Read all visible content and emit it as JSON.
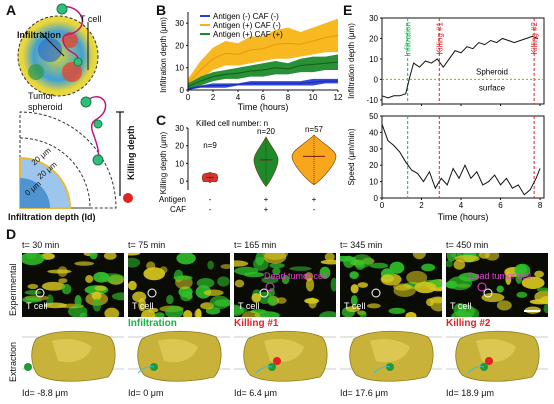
{
  "panels": {
    "a": "A",
    "b": "B",
    "c": "C",
    "d": "D",
    "e": "E"
  },
  "panel_a": {
    "t_cell": "T cell",
    "infiltration": "Infiltration",
    "tumor_spheroid_l1": "Tumor",
    "tumor_spheroid_l2": "spheroid",
    "killing_depth": "Killing depth",
    "r20a": "20 μm",
    "r20b": "20 μm",
    "r0": "0 μm",
    "infiltration_depth": "Infiltration depth (Id)"
  },
  "chart_b": {
    "type": "area",
    "ylabel": "Infiltration depth (μm)",
    "xlabel": "Time (hours)",
    "xticks": [
      "0",
      "2",
      "4",
      "6",
      "8",
      "10",
      "12"
    ],
    "yticks": [
      "0",
      "10",
      "20",
      "30"
    ],
    "xlim": [
      0,
      12
    ],
    "ylim": [
      0,
      35
    ],
    "legend": [
      {
        "label": "Antigen (-)  CAF (-)",
        "color": "#2a3fd6"
      },
      {
        "label": "Antigen (+) CAF (-)",
        "color": "#f2b21c"
      },
      {
        "label": "Antigen (+) CAF (+)",
        "color": "#1e8a2a"
      }
    ],
    "series": [
      {
        "name": "Antigen (+) CAF (-)",
        "color": "#f8b416",
        "x": [
          0,
          1,
          2,
          3,
          4,
          5,
          6,
          7,
          8,
          9,
          10,
          11,
          12
        ],
        "low": [
          1,
          5,
          9,
          11,
          11,
          12,
          13,
          14,
          14,
          15,
          16,
          17,
          17
        ],
        "high": [
          5,
          13,
          19,
          22,
          21,
          24,
          24,
          27,
          28,
          26,
          28,
          30,
          32
        ]
      },
      {
        "name": "Antigen (+) CAF (+)",
        "color": "#1e8a2a",
        "x": [
          0,
          1,
          2,
          3,
          4,
          5,
          6,
          7,
          8,
          9,
          10,
          11,
          12
        ],
        "low": [
          0,
          2,
          4,
          5,
          5,
          6,
          6,
          7,
          7,
          8,
          8,
          9,
          9
        ],
        "high": [
          3,
          6,
          8,
          9,
          10,
          11,
          12,
          13,
          12,
          14,
          15,
          15,
          16
        ]
      },
      {
        "name": "Antigen (-)  CAF (-)",
        "color": "#2a3fd6",
        "x": [
          0,
          1,
          2,
          3,
          4,
          5,
          6,
          7,
          8,
          9,
          10,
          11,
          12
        ],
        "low": [
          0,
          1,
          1,
          1,
          2,
          2,
          2,
          2,
          2,
          2,
          2,
          3,
          3
        ],
        "high": [
          1,
          2,
          3,
          3,
          3,
          4,
          4,
          4,
          4,
          4,
          5,
          5,
          5
        ]
      }
    ]
  },
  "chart_c": {
    "type": "violin",
    "ylabel": "Killing depth (μm)",
    "title": "Killed cell number: n",
    "yticks": [
      "0",
      "10",
      "20",
      "30"
    ],
    "ylim": [
      -5,
      30
    ],
    "groups": [
      {
        "n": "n=9",
        "antigen": "-",
        "caf": "-",
        "color": "#d9342b",
        "median": 2,
        "min": -1,
        "max": 5,
        "width": 0.35
      },
      {
        "n": "n=20",
        "antigen": "+",
        "caf": "+",
        "color": "#1e8a2a",
        "median": 12,
        "min": -3,
        "max": 25,
        "width": 0.55
      },
      {
        "n": "n=57",
        "antigen": "+",
        "caf": "-",
        "color": "#f8a61c",
        "median": 14,
        "min": -2,
        "max": 26,
        "width": 1.0
      }
    ],
    "row_antigen": "Antigen",
    "row_caf": "CAF"
  },
  "chart_e": {
    "type": "line",
    "top": {
      "ylabel": "Infiltration depth (μm)",
      "yticks": [
        "-10",
        "0",
        "10",
        "20",
        "30"
      ],
      "ylim": [
        -12,
        30
      ],
      "x": [
        0,
        0.3,
        0.6,
        0.9,
        1.2,
        1.4,
        1.6,
        1.9,
        2.2,
        2.5,
        2.8,
        3.1,
        3.4,
        3.7,
        4.0,
        4.3,
        4.6,
        4.9,
        5.2,
        5.5,
        5.8,
        6.1,
        6.4,
        6.7,
        7.0,
        7.3,
        7.6,
        7.9
      ],
      "y": [
        -8,
        -9,
        -8,
        -8,
        -7,
        1,
        8,
        6,
        9,
        8,
        10,
        6,
        10,
        14,
        13,
        16,
        15,
        18,
        17,
        19,
        18,
        20,
        19,
        18,
        19,
        20,
        21,
        20
      ],
      "spheroid": "Spheroid",
      "surface": "surface"
    },
    "bottom": {
      "ylabel": "Speed (μm/min)",
      "yticks": [
        "0",
        "10",
        "20",
        "30",
        "40",
        "50"
      ],
      "ylim": [
        0,
        50
      ],
      "x": [
        0,
        0.3,
        0.6,
        0.9,
        1.2,
        1.5,
        1.8,
        2.1,
        2.4,
        2.7,
        3.0,
        3.3,
        3.6,
        3.9,
        4.2,
        4.5,
        4.8,
        5.1,
        5.4,
        5.7,
        6.0,
        6.3,
        6.6,
        6.9,
        7.2,
        7.5,
        7.8,
        8.0
      ],
      "y": [
        45,
        35,
        32,
        28,
        22,
        17,
        15,
        10,
        16,
        6,
        12,
        8,
        18,
        12,
        20,
        12,
        16,
        8,
        10,
        14,
        8,
        12,
        6,
        8,
        2,
        5,
        12,
        18
      ]
    },
    "xlabel": "Time (hours)",
    "xticks": [
      "0",
      "2",
      "4",
      "6",
      "8"
    ],
    "xlim": [
      0,
      8.2
    ],
    "markers": [
      {
        "label": "Infiltration",
        "x": 1.3,
        "color": "#19b34a"
      },
      {
        "label": "Killing #1",
        "x": 2.9,
        "color": "#e02424"
      },
      {
        "label": "Killing #2",
        "x": 7.7,
        "color": "#e02424"
      }
    ]
  },
  "panel_d": {
    "times": [
      "t= 30 min",
      "t= 75 min",
      "t= 165 min",
      "t= 345 min",
      "t= 450 min"
    ],
    "row_exp": "Experimental",
    "row_ext": "Extraction",
    "tcell": "T cell",
    "dead_label_1": "Dead tumor cell",
    "dead_label_2": "Dead tumor cell",
    "events": [
      "",
      "Infiltration",
      "Killing #1",
      "",
      "Killing #2"
    ],
    "event_colors": [
      "#000",
      "#19b34a",
      "#e02424",
      "#000",
      "#e02424"
    ],
    "ids": [
      "Id= -8.8 μm",
      "Id= 0 μm",
      "Id= 6.4 μm",
      "Id= 17.6 μm",
      "Id= 18.9 μm"
    ]
  }
}
